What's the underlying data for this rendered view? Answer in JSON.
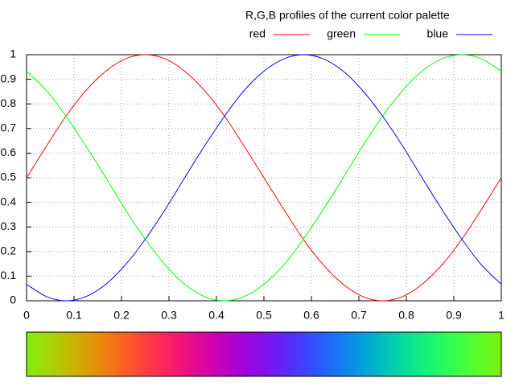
{
  "chart_data": {
    "type": "line",
    "title": "R,G,B profiles of the current color palette",
    "x": [
      0,
      0.042,
      0.083,
      0.125,
      0.167,
      0.208,
      0.25,
      0.292,
      0.333,
      0.375,
      0.417,
      0.458,
      0.5,
      0.542,
      0.583,
      0.625,
      0.667,
      0.708,
      0.75,
      0.792,
      0.833,
      0.875,
      0.917,
      0.958,
      1
    ],
    "series": [
      {
        "name": "red",
        "color": "#ff0000",
        "values": [
          0.5,
          0.629,
          0.75,
          0.854,
          0.933,
          0.983,
          1,
          0.983,
          0.933,
          0.854,
          0.75,
          0.629,
          0.5,
          0.371,
          0.25,
          0.146,
          0.067,
          0.017,
          0,
          0.017,
          0.067,
          0.146,
          0.25,
          0.371,
          0.5
        ]
      },
      {
        "name": "green",
        "color": "#00ff00",
        "values": [
          0.933,
          0.854,
          0.75,
          0.629,
          0.5,
          0.371,
          0.25,
          0.146,
          0.067,
          0.017,
          0,
          0.017,
          0.067,
          0.146,
          0.25,
          0.371,
          0.5,
          0.629,
          0.75,
          0.854,
          0.933,
          0.983,
          1,
          0.983,
          0.933
        ]
      },
      {
        "name": "blue",
        "color": "#0000ff",
        "values": [
          0.067,
          0.017,
          0,
          0.017,
          0.067,
          0.146,
          0.25,
          0.371,
          0.5,
          0.629,
          0.75,
          0.854,
          0.933,
          0.983,
          1,
          0.983,
          0.933,
          0.854,
          0.75,
          0.629,
          0.5,
          0.371,
          0.25,
          0.146,
          0.067
        ]
      }
    ],
    "xlim": [
      0,
      1
    ],
    "xticks": [
      0,
      0.1,
      0.2,
      0.3,
      0.4,
      0.5,
      0.6,
      0.7,
      0.8,
      0.9,
      1
    ],
    "ylim": [
      0,
      1
    ],
    "yticks": [
      0,
      0.1,
      0.2,
      0.3,
      0.4,
      0.5,
      0.6,
      0.7,
      0.8,
      0.9,
      1
    ],
    "grid": true,
    "legend": "top-right"
  }
}
